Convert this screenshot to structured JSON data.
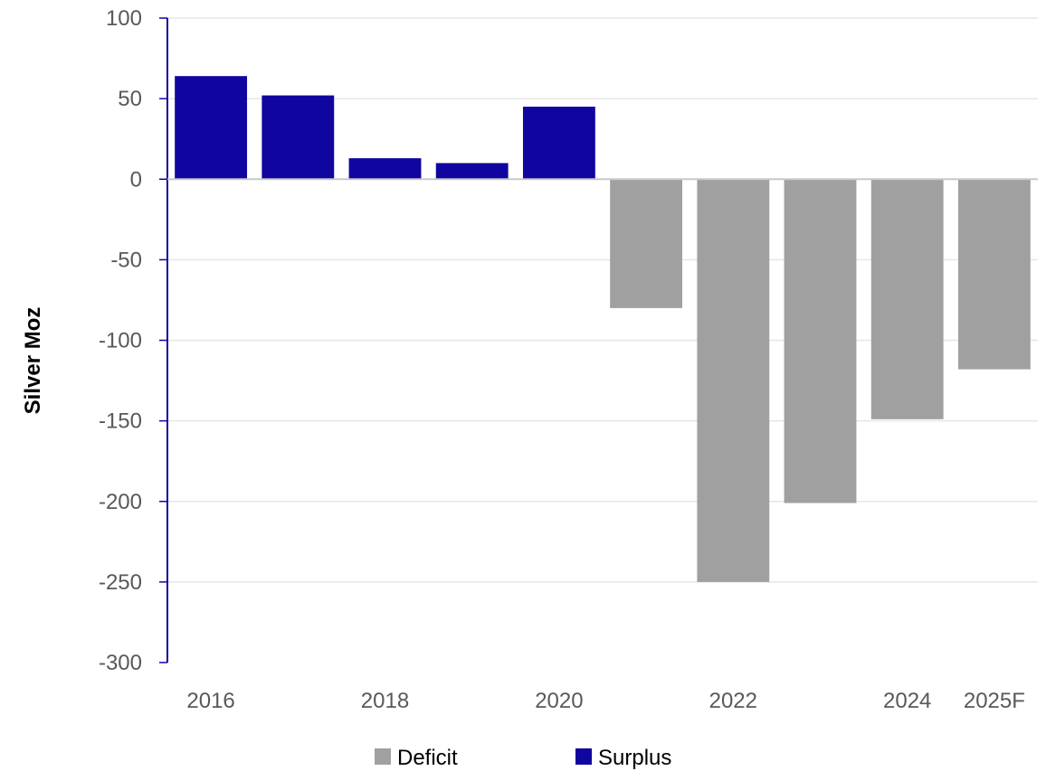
{
  "chart_data": {
    "type": "bar",
    "title": "",
    "xlabel": "",
    "ylabel": "Silver  Moz",
    "ylim": [
      -300,
      100
    ],
    "y_ticks": [
      100,
      50,
      0,
      -50,
      -100,
      -150,
      -200,
      -250,
      -300
    ],
    "categories": [
      "2016",
      "2017",
      "2018",
      "2019",
      "2020",
      "2021",
      "2022",
      "2023",
      "2024",
      "2025F"
    ],
    "x_tick_labels": [
      "2016",
      "",
      "2018",
      "",
      "2020",
      "",
      "2022",
      "",
      "2024",
      "2025F"
    ],
    "series": [
      {
        "name": "Deficit",
        "color": "#a0a0a0",
        "values": [
          null,
          null,
          null,
          null,
          null,
          -80,
          -250,
          -201,
          -149,
          -118
        ]
      },
      {
        "name": "Surplus",
        "color": "#10069f",
        "values": [
          64,
          52,
          13,
          10,
          45,
          null,
          null,
          null,
          null,
          null
        ]
      }
    ],
    "grid": true,
    "legend_position": "bottom-center"
  }
}
